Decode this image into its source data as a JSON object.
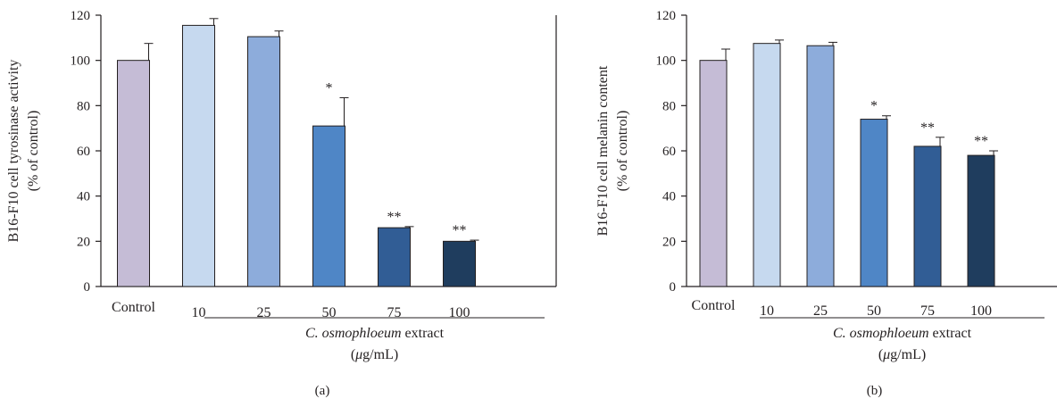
{
  "chart_data": [
    {
      "type": "bar",
      "panel_label": "(a)",
      "ylabel": [
        "B16-F10 cell tyrosinase activity",
        "(% of control)"
      ],
      "xlabel": {
        "italic": "C. osmophloeum",
        "rest": " extract",
        "unit_prefix": "(",
        "unit_mu": "μ",
        "unit_rest": "g/mL)"
      },
      "ylim": [
        0,
        120
      ],
      "yticks": [
        "0",
        "20",
        "40",
        "60",
        "80",
        "100",
        "120"
      ],
      "categories": [
        "Control",
        "10",
        "25",
        "50",
        "75",
        "100"
      ],
      "values": [
        100,
        115.5,
        110.5,
        71,
        26,
        20
      ],
      "errors": [
        7.5,
        3,
        2.5,
        12.5,
        0.5,
        0.5
      ],
      "significance": [
        "",
        "",
        "",
        "*",
        "**",
        "**"
      ],
      "colors": [
        "#c5bcd6",
        "#c6d9ef",
        "#8dacdb",
        "#4f86c6",
        "#315d95",
        "#1f3d5e"
      ],
      "grid": false
    },
    {
      "type": "bar",
      "panel_label": "(b)",
      "ylabel": [
        "B16-F10 cell melanin content",
        "(% of control)"
      ],
      "xlabel": {
        "italic": "C. osmophloeum",
        "rest": " extract",
        "unit_prefix": "(",
        "unit_mu": "μ",
        "unit_rest": "g/mL)"
      },
      "ylim": [
        0,
        120
      ],
      "yticks": [
        "0",
        "20",
        "40",
        "60",
        "80",
        "100",
        "120"
      ],
      "categories": [
        "Control",
        "10",
        "25",
        "50",
        "75",
        "100"
      ],
      "values": [
        100,
        107.5,
        106.5,
        74,
        62,
        58
      ],
      "errors": [
        5,
        1.5,
        1.5,
        1.5,
        4,
        2
      ],
      "significance": [
        "",
        "",
        "",
        "*",
        "**",
        "**"
      ],
      "colors": [
        "#c5bcd6",
        "#c6d9ef",
        "#8dacdb",
        "#4f86c6",
        "#315d95",
        "#1f3d5e"
      ],
      "grid": false
    }
  ]
}
